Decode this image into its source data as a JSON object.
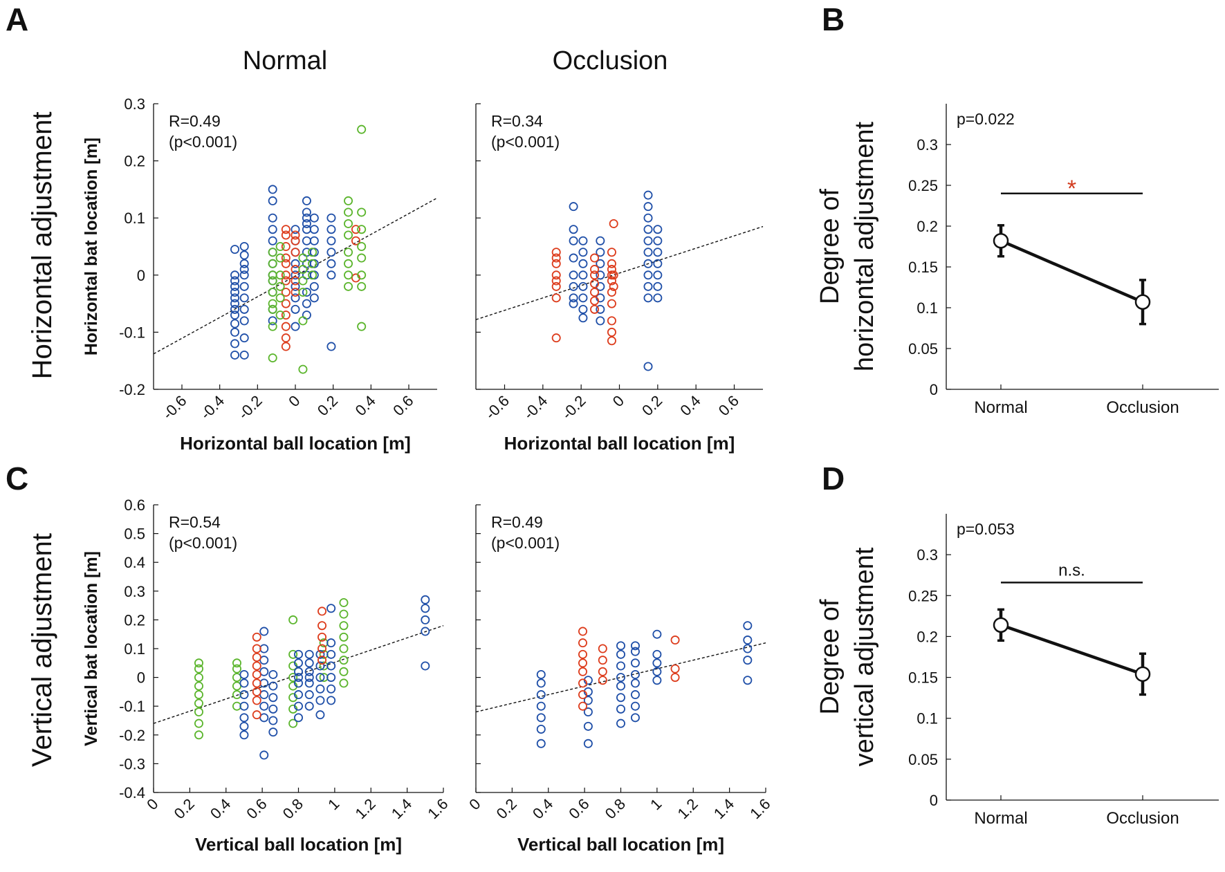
{
  "colors": {
    "blue": "#1f4fa8",
    "red": "#dd3c1c",
    "green": "#5bb52c",
    "ink": "#111111"
  },
  "panel_labels": [
    "A",
    "B",
    "C",
    "D"
  ],
  "column_titles": {
    "normal": "Normal",
    "occlusion": "Occlusion"
  },
  "row_labels": {
    "top": "Horizontal adjustment",
    "bottom": "Vertical adjustment"
  },
  "chart_data": [
    {
      "id": "A-normal",
      "type": "scatter",
      "title": "Normal",
      "xlabel": "Horizontal ball location [m]",
      "ylabel": "Horizontal bat location [m]",
      "xlim": [
        -0.75,
        0.75
      ],
      "ylim": [
        -0.2,
        0.3
      ],
      "xticks": [
        -0.6,
        -0.4,
        -0.2,
        0,
        0.2,
        0.4,
        0.6
      ],
      "xtick_labels": [
        "-0.6",
        "-0.4",
        "-0.2",
        "0",
        "0.2",
        "0.4",
        "0.6"
      ],
      "yticks": [
        -0.2,
        -0.1,
        0,
        0.1,
        0.2,
        0.3
      ],
      "ytick_labels": [
        "-0.2",
        "-0.1",
        "0",
        "0.1",
        "0.2",
        "0.3"
      ],
      "show_y_ticklabels": true,
      "annotation": {
        "r": "R=0.49",
        "p": "(p<0.001)"
      },
      "fit_line": {
        "x": [
          -0.75,
          0.75
        ],
        "y": [
          -0.138,
          0.135
        ]
      },
      "series": [
        {
          "name": "blue",
          "color": "#1f4fa8",
          "points": [
            {
              "x": -0.32,
              "y": [
                -0.14,
                -0.12,
                -0.1,
                -0.085,
                -0.07,
                -0.06,
                -0.05,
                -0.04,
                -0.03,
                -0.02,
                -0.01,
                0.0,
                0.045
              ]
            },
            {
              "x": -0.27,
              "y": [
                -0.14,
                -0.11,
                -0.08,
                -0.06,
                -0.04,
                -0.02,
                0.0,
                0.01,
                0.02,
                0.035,
                0.05
              ]
            },
            {
              "x": -0.12,
              "y": [
                -0.08,
                -0.06,
                -0.03,
                -0.01,
                0.0,
                0.02,
                0.04,
                0.06,
                0.08,
                0.1,
                0.13,
                0.15
              ]
            },
            {
              "x": 0.0,
              "y": [
                -0.09,
                -0.06,
                -0.04,
                -0.02,
                0.0,
                0.02,
                0.04,
                0.06,
                0.08
              ]
            },
            {
              "x": 0.06,
              "y": [
                -0.07,
                -0.05,
                -0.03,
                0.0,
                0.02,
                0.04,
                0.06,
                0.08,
                0.09,
                0.1,
                0.11,
                0.13
              ]
            },
            {
              "x": 0.1,
              "y": [
                -0.04,
                -0.02,
                0.0,
                0.02,
                0.04,
                0.06,
                0.08,
                0.1
              ]
            },
            {
              "x": 0.19,
              "y": [
                -0.125,
                0.0,
                0.02,
                0.04,
                0.06,
                0.08,
                0.1
              ]
            }
          ]
        },
        {
          "name": "red",
          "color": "#dd3c1c",
          "points": [
            {
              "x": -0.05,
              "y": [
                -0.125,
                -0.11,
                -0.09,
                -0.07,
                -0.05,
                -0.03,
                -0.01,
                0.0,
                0.02,
                0.03,
                0.05,
                0.07,
                0.08
              ]
            },
            {
              "x": 0.0,
              "y": [
                -0.03,
                -0.01,
                0.01,
                0.04,
                0.06,
                0.07
              ]
            },
            {
              "x": 0.32,
              "y": [
                0.06,
                0.08,
                -0.005
              ]
            }
          ]
        },
        {
          "name": "green",
          "color": "#5bb52c",
          "points": [
            {
              "x": -0.12,
              "y": [
                -0.145,
                -0.09,
                -0.06,
                -0.05,
                -0.03,
                -0.01,
                0.0,
                0.02,
                0.04
              ]
            },
            {
              "x": -0.08,
              "y": [
                -0.07,
                -0.04,
                -0.02,
                0.0,
                0.03,
                0.05
              ]
            },
            {
              "x": 0.04,
              "y": [
                -0.165,
                -0.08,
                -0.03,
                -0.01,
                0.01,
                0.03
              ]
            },
            {
              "x": 0.09,
              "y": [
                0.0,
                0.02,
                0.04
              ]
            },
            {
              "x": 0.28,
              "y": [
                -0.02,
                0.0,
                0.02,
                0.04,
                0.07,
                0.09,
                0.11,
                0.13
              ]
            },
            {
              "x": 0.35,
              "y": [
                -0.09,
                -0.02,
                0.0,
                0.03,
                0.05,
                0.08,
                0.11,
                0.255
              ]
            }
          ]
        }
      ]
    },
    {
      "id": "A-occlusion",
      "type": "scatter",
      "title": "Occlusion",
      "xlabel": "Horizontal ball location [m]",
      "ylabel": "",
      "xlim": [
        -0.75,
        0.75
      ],
      "ylim": [
        -0.2,
        0.3
      ],
      "xticks": [
        -0.6,
        -0.4,
        -0.2,
        0,
        0.2,
        0.4,
        0.6
      ],
      "xtick_labels": [
        "-0.6",
        "-0.4",
        "-0.2",
        "0",
        "0.2",
        "0.4",
        "0.6"
      ],
      "yticks": [
        -0.2,
        -0.1,
        0,
        0.1,
        0.2,
        0.3
      ],
      "ytick_labels": [],
      "show_y_ticklabels": false,
      "annotation": {
        "r": "R=0.34",
        "p": "(p<0.001)"
      },
      "fit_line": {
        "x": [
          -0.75,
          0.75
        ],
        "y": [
          -0.078,
          0.085
        ]
      },
      "series": [
        {
          "name": "blue",
          "color": "#1f4fa8",
          "points": [
            {
              "x": -0.24,
              "y": [
                -0.05,
                -0.04,
                -0.02,
                0.0,
                0.03,
                0.06,
                0.08,
                0.12
              ]
            },
            {
              "x": -0.19,
              "y": [
                -0.075,
                -0.06,
                -0.04,
                -0.02,
                0.0,
                0.02,
                0.04,
                0.06
              ]
            },
            {
              "x": -0.1,
              "y": [
                -0.08,
                -0.06,
                -0.04,
                -0.02,
                0.0,
                0.02,
                0.04,
                0.06
              ]
            },
            {
              "x": 0.15,
              "y": [
                -0.16,
                -0.04,
                -0.02,
                0.0,
                0.02,
                0.04,
                0.06,
                0.08,
                0.1,
                0.12,
                0.14
              ]
            },
            {
              "x": 0.2,
              "y": [
                -0.04,
                -0.02,
                0.0,
                0.02,
                0.04,
                0.06,
                0.08
              ]
            }
          ]
        },
        {
          "name": "red",
          "color": "#dd3c1c",
          "points": [
            {
              "x": -0.33,
              "y": [
                -0.11,
                -0.04,
                -0.02,
                -0.01,
                0.0,
                0.02,
                0.03,
                0.04
              ]
            },
            {
              "x": -0.13,
              "y": [
                -0.06,
                -0.045,
                -0.03,
                -0.015,
                0.0,
                0.01,
                0.03
              ]
            },
            {
              "x": -0.04,
              "y": [
                -0.115,
                -0.1,
                -0.08,
                -0.05,
                -0.03,
                -0.01,
                0.0,
                0.01,
                0.02,
                0.04
              ]
            },
            {
              "x": -0.03,
              "y": [
                0.09,
                -0.02,
                0.0
              ]
            }
          ]
        }
      ]
    },
    {
      "id": "C-normal",
      "type": "scatter",
      "title": "",
      "xlabel": "Vertical ball location [m]",
      "ylabel": "Vertical bat location [m]",
      "xlim": [
        0,
        1.6
      ],
      "ylim": [
        -0.4,
        0.6
      ],
      "xticks": [
        0,
        0.2,
        0.4,
        0.6,
        0.8,
        1,
        1.2,
        1.4,
        1.6
      ],
      "xtick_labels": [
        "0",
        "0.2",
        "0.4",
        "0.6",
        "0.8",
        "1",
        "1.2",
        "1.4",
        "1.6"
      ],
      "yticks": [
        -0.4,
        -0.3,
        -0.2,
        -0.1,
        0,
        0.1,
        0.2,
        0.3,
        0.4,
        0.5,
        0.6
      ],
      "ytick_labels": [
        "-0.4",
        "-0.3",
        "-0.2",
        "-0.1",
        "0",
        "0.1",
        "0.2",
        "0.3",
        "0.4",
        "0.5",
        "0.6"
      ],
      "show_y_ticklabels": true,
      "annotation": {
        "r": "R=0.54",
        "p": "(p<0.001)"
      },
      "fit_line": {
        "x": [
          0,
          1.6
        ],
        "y": [
          -0.16,
          0.18
        ]
      },
      "series": [
        {
          "name": "green",
          "color": "#5bb52c",
          "points": [
            {
              "x": 0.25,
              "y": [
                -0.2,
                -0.16,
                -0.12,
                -0.09,
                -0.06,
                -0.03,
                0.0,
                0.03,
                0.05
              ]
            },
            {
              "x": 0.46,
              "y": [
                -0.1,
                -0.06,
                -0.03,
                0.0,
                0.03,
                0.05
              ]
            },
            {
              "x": 0.77,
              "y": [
                -0.16,
                -0.11,
                -0.07,
                -0.03,
                0.0,
                0.04,
                0.08,
                0.2
              ]
            },
            {
              "x": 0.94,
              "y": [
                0.0,
                0.04,
                0.08,
                0.12
              ]
            },
            {
              "x": 1.05,
              "y": [
                -0.02,
                0.02,
                0.06,
                0.1,
                0.14,
                0.18,
                0.22,
                0.26
              ]
            }
          ]
        },
        {
          "name": "blue",
          "color": "#1f4fa8",
          "points": [
            {
              "x": 0.5,
              "y": [
                -0.2,
                -0.17,
                -0.14,
                -0.1,
                -0.06,
                -0.02,
                0.01
              ]
            },
            {
              "x": 0.61,
              "y": [
                -0.27,
                -0.14,
                -0.1,
                -0.06,
                -0.02,
                0.02,
                0.06,
                0.1,
                0.16
              ]
            },
            {
              "x": 0.66,
              "y": [
                -0.19,
                -0.15,
                -0.11,
                -0.07,
                -0.03,
                0.01
              ]
            },
            {
              "x": 0.8,
              "y": [
                -0.14,
                -0.1,
                -0.06,
                -0.02,
                0.0,
                0.02,
                0.05,
                0.08
              ]
            },
            {
              "x": 0.86,
              "y": [
                -0.1,
                -0.06,
                -0.02,
                0.0,
                0.02,
                0.05,
                0.08
              ]
            },
            {
              "x": 0.92,
              "y": [
                -0.13,
                -0.08,
                -0.04,
                0.0,
                0.04,
                0.08
              ]
            },
            {
              "x": 0.98,
              "y": [
                -0.08,
                -0.04,
                0.0,
                0.04,
                0.08,
                0.12,
                0.24
              ]
            },
            {
              "x": 1.5,
              "y": [
                0.04,
                0.16,
                0.2,
                0.24,
                0.27
              ]
            }
          ]
        },
        {
          "name": "red",
          "color": "#dd3c1c",
          "points": [
            {
              "x": 0.57,
              "y": [
                -0.13,
                -0.08,
                -0.05,
                -0.02,
                0.01,
                0.04,
                0.07,
                0.1,
                0.14
              ]
            },
            {
              "x": 0.93,
              "y": [
                0.06,
                0.1,
                0.14,
                0.18,
                0.23
              ]
            }
          ]
        }
      ]
    },
    {
      "id": "C-occlusion",
      "type": "scatter",
      "title": "",
      "xlabel": "Vertical ball location [m]",
      "ylabel": "",
      "xlim": [
        0,
        1.6
      ],
      "ylim": [
        -0.4,
        0.6
      ],
      "xticks": [
        0,
        0.2,
        0.4,
        0.6,
        0.8,
        1,
        1.2,
        1.4,
        1.6
      ],
      "xtick_labels": [
        "0",
        "0.2",
        "0.4",
        "0.6",
        "0.8",
        "1",
        "1.2",
        "1.4",
        "1.6"
      ],
      "yticks": [
        -0.4,
        -0.3,
        -0.2,
        -0.1,
        0,
        0.1,
        0.2,
        0.3,
        0.4,
        0.5,
        0.6
      ],
      "ytick_labels": [],
      "show_y_ticklabels": false,
      "annotation": {
        "r": "R=0.49",
        "p": "(p<0.001)"
      },
      "fit_line": {
        "x": [
          0,
          1.6
        ],
        "y": [
          -0.12,
          0.12
        ]
      },
      "series": [
        {
          "name": "blue",
          "color": "#1f4fa8",
          "points": [
            {
              "x": 0.36,
              "y": [
                -0.23,
                -0.18,
                -0.14,
                -0.1,
                -0.06,
                -0.02,
                0.01
              ]
            },
            {
              "x": 0.62,
              "y": [
                -0.23,
                -0.17,
                -0.12,
                -0.08,
                -0.05,
                -0.01
              ]
            },
            {
              "x": 0.8,
              "y": [
                -0.16,
                -0.11,
                -0.07,
                -0.03,
                0.0,
                0.04,
                0.08,
                0.11
              ]
            },
            {
              "x": 0.88,
              "y": [
                -0.14,
                -0.1,
                -0.06,
                -0.02,
                0.01,
                0.05,
                0.09,
                0.11
              ]
            },
            {
              "x": 1.0,
              "y": [
                -0.01,
                0.02,
                0.05,
                0.08,
                0.15
              ]
            },
            {
              "x": 1.5,
              "y": [
                -0.01,
                0.06,
                0.1,
                0.13,
                0.18
              ]
            }
          ]
        },
        {
          "name": "red",
          "color": "#dd3c1c",
          "points": [
            {
              "x": 0.59,
              "y": [
                -0.1,
                -0.06,
                -0.02,
                0.02,
                0.05,
                0.08,
                0.12,
                0.16
              ]
            },
            {
              "x": 0.7,
              "y": [
                -0.01,
                0.02,
                0.06,
                0.1
              ]
            },
            {
              "x": 1.1,
              "y": [
                0.0,
                0.03,
                0.13
              ]
            }
          ]
        }
      ]
    },
    {
      "id": "B",
      "type": "line",
      "ylabel": "Degree of horizontal adjustment",
      "ylabel_lines": [
        "Degree of",
        "horizontal adjustment"
      ],
      "categories": [
        "Normal",
        "Occlusion"
      ],
      "values": [
        0.182,
        0.107
      ],
      "error": [
        0.019,
        0.027
      ],
      "ylim": [
        0,
        0.35
      ],
      "yticks": [
        0,
        0.05,
        0.1,
        0.15,
        0.2,
        0.25,
        0.3
      ],
      "ytick_labels": [
        "0",
        "0.05",
        "0.1",
        "0.15",
        "0.2",
        "0.25",
        "0.3"
      ],
      "p_text": "p=0.022",
      "significance": {
        "label": "*",
        "bar_y": 0.24
      }
    },
    {
      "id": "D",
      "type": "line",
      "ylabel": "Degree of vertical adjustment",
      "ylabel_lines": [
        "Degree of",
        "vertical adjustment"
      ],
      "categories": [
        "Normal",
        "Occlusion"
      ],
      "values": [
        0.214,
        0.154
      ],
      "error": [
        0.019,
        0.025
      ],
      "ylim": [
        0,
        0.35
      ],
      "yticks": [
        0,
        0.05,
        0.1,
        0.15,
        0.2,
        0.25,
        0.3
      ],
      "ytick_labels": [
        "0",
        "0.05",
        "0.1",
        "0.15",
        "0.2",
        "0.25",
        "0.3"
      ],
      "p_text": "p=0.053",
      "significance": {
        "label": "n.s.",
        "bar_y": 0.266
      }
    }
  ]
}
